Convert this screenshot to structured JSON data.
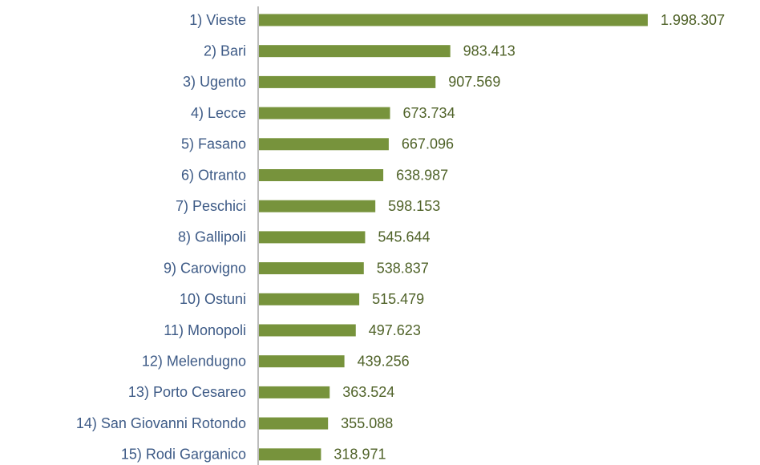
{
  "chart_data": {
    "type": "bar",
    "orientation": "horizontal",
    "categories": [
      "1) Vieste",
      "2) Bari",
      "3) Ugento",
      "4) Lecce",
      "5) Fasano",
      "6) Otranto",
      "7) Peschici",
      "8) Gallipoli",
      "9) Carovigno",
      "10) Ostuni",
      "11) Monopoli",
      "12) Melendugno",
      "13) Porto Cesareo",
      "14) San Giovanni Rotondo",
      "15) Rodi Garganico"
    ],
    "values": [
      1998307,
      983413,
      907569,
      673734,
      667096,
      638987,
      598153,
      545644,
      538837,
      515479,
      497623,
      439256,
      363524,
      355088,
      318971
    ],
    "value_labels": [
      "1.998.307",
      "983.413",
      "907.569",
      "673.734",
      "667.096",
      "638.987",
      "598.153",
      "545.644",
      "538.837",
      "515.479",
      "497.623",
      "439.256",
      "363.524",
      "355.088",
      "318.971"
    ],
    "color": "#77933c"
  }
}
